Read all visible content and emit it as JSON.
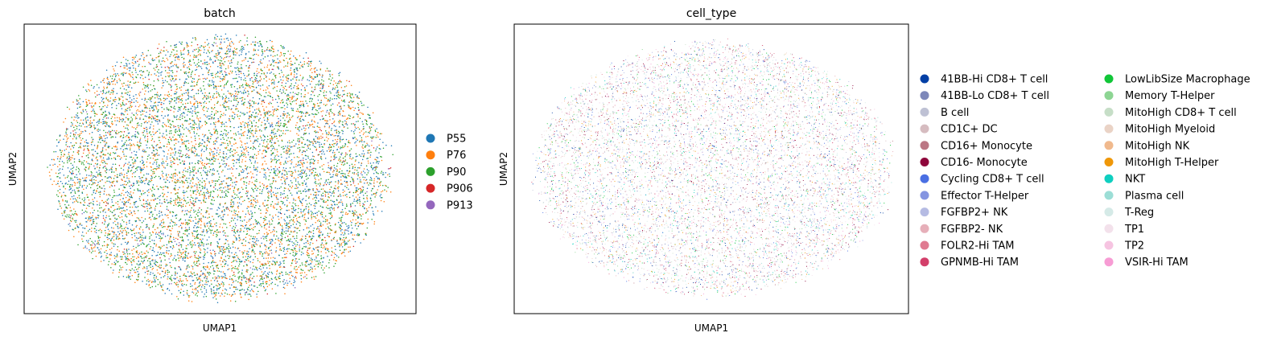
{
  "chart_data": [
    {
      "type": "scatter",
      "title": "batch",
      "xlabel": "UMAP1",
      "ylabel": "UMAP2",
      "grid": false,
      "ticks": false,
      "legend_placement": "right",
      "legend_columns": 1,
      "series": [
        {
          "name": "P55",
          "color": "#1f77b4"
        },
        {
          "name": "P76",
          "color": "#ff7f0e"
        },
        {
          "name": "P90",
          "color": "#2ca02c"
        },
        {
          "name": "P906",
          "color": "#d62728"
        },
        {
          "name": "P913",
          "color": "#9467bd"
        }
      ],
      "series_weights": [
        1,
        1,
        1,
        0.08,
        0.04
      ]
    },
    {
      "type": "scatter",
      "title": "cell_type",
      "xlabel": "UMAP1",
      "ylabel": "UMAP2",
      "grid": false,
      "ticks": false,
      "legend_placement": "right",
      "legend_columns": 2,
      "series": [
        {
          "name": "41BB-Hi CD8+ T cell",
          "color": "#023fa5"
        },
        {
          "name": "41BB-Lo CD8+ T cell",
          "color": "#7d87b9"
        },
        {
          "name": "B cell",
          "color": "#bec1d4"
        },
        {
          "name": "CD1C+ DC",
          "color": "#d6bcc0"
        },
        {
          "name": "CD16+ Monocyte",
          "color": "#bb7784"
        },
        {
          "name": "CD16- Monocyte",
          "color": "#8e063b"
        },
        {
          "name": "Cycling CD8+ T cell",
          "color": "#4a6fe3"
        },
        {
          "name": "Effector T-Helper",
          "color": "#8595e1"
        },
        {
          "name": "FGFBP2+ NK",
          "color": "#b5bbe3"
        },
        {
          "name": "FGFBP2- NK",
          "color": "#e6afb9"
        },
        {
          "name": "FOLR2-Hi TAM",
          "color": "#e07b91"
        },
        {
          "name": "GPNMB-Hi TAM",
          "color": "#d33f6a"
        },
        {
          "name": "LowLibSize Macrophage",
          "color": "#11c638"
        },
        {
          "name": "Memory T-Helper",
          "color": "#8dd593"
        },
        {
          "name": "MitoHigh CD8+ T cell",
          "color": "#c6dec7"
        },
        {
          "name": "MitoHigh Myeloid",
          "color": "#ead3c6"
        },
        {
          "name": "MitoHigh NK",
          "color": "#f0b98d"
        },
        {
          "name": "MitoHigh T-Helper",
          "color": "#ef9708"
        },
        {
          "name": "NKT",
          "color": "#0fcfc0"
        },
        {
          "name": "Plasma cell",
          "color": "#9cded6"
        },
        {
          "name": "T-Reg",
          "color": "#d5eae7"
        },
        {
          "name": "TP1",
          "color": "#f3e1eb"
        },
        {
          "name": "TP2",
          "color": "#f6c4e1"
        },
        {
          "name": "VSIR-Hi TAM",
          "color": "#f79cd4"
        }
      ]
    }
  ]
}
